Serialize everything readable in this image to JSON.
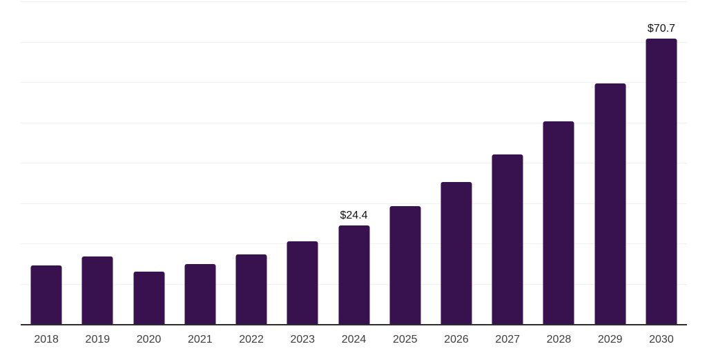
{
  "chart_data": {
    "type": "bar",
    "title": "",
    "xlabel": "",
    "ylabel": "",
    "categories": [
      "2018",
      "2019",
      "2020",
      "2021",
      "2022",
      "2023",
      "2024",
      "2025",
      "2026",
      "2027",
      "2028",
      "2029",
      "2030"
    ],
    "values": [
      14.6,
      16.8,
      13.0,
      14.8,
      17.3,
      20.5,
      24.4,
      29.3,
      35.3,
      42.1,
      50.2,
      59.6,
      70.7
    ],
    "bar_labels": [
      "",
      "",
      "",
      "",
      "",
      "",
      "$24.4",
      "",
      "",
      "",
      "",
      "",
      "$70.7"
    ],
    "ylim": [
      0,
      80
    ],
    "grid_step": 10,
    "grid": true,
    "legend": false,
    "y_tick_labels_shown": false,
    "colors": {
      "bar": "#37124f",
      "gridline": "#f0f0f0",
      "axis": "#2b2b2b",
      "tick_label": "#3d3d3d",
      "annotation": "#111111",
      "background": "#ffffff"
    }
  }
}
